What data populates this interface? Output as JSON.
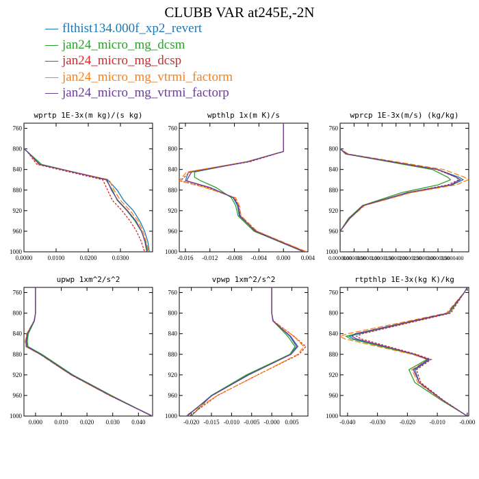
{
  "figure_title": "CLUBB VAR at245E,-2N",
  "colors": [
    "#1f77b4",
    "#2ca02c",
    "#d62728",
    "#ff7f0e",
    "#6a3d9a"
  ],
  "legend": [
    {
      "label": "flthist134.000f_xp2_revert",
      "color": "#1f77b4"
    },
    {
      "label": "jan24_micro_mg_dcsm",
      "color": "#2ca02c"
    },
    {
      "label": "jan24_micro_mg_dcsp",
      "color": "#d62728"
    },
    {
      "label": "jan24_micro_mg_vtrmi_factorm",
      "color": "#ff7f0e"
    },
    {
      "label": "jan24_micro_mg_vtrmi_factorp",
      "color": "#6a3d9a"
    }
  ],
  "chart_data": [
    {
      "type": "line",
      "title": "wprtp  1E-3x(m kg)/(s kg)",
      "xlim": [
        0,
        0.04
      ],
      "ylim": [
        1000,
        750
      ],
      "xticks": [
        0,
        0.01,
        0.02,
        0.03
      ],
      "xtick_labels": [
        "0.0000",
        "0.0100",
        "0.0200",
        "0.0300"
      ],
      "yticks": [
        760,
        800,
        840,
        880,
        920,
        960,
        1000
      ],
      "y": [
        750,
        800,
        805,
        830,
        860,
        880,
        900,
        920,
        940,
        960,
        980,
        1000
      ],
      "series": [
        {
          "name": "flthist134.000f_xp2_revert",
          "values": [
            0,
            0,
            0.001,
            0.005,
            0.026,
            0.029,
            0.031,
            0.034,
            0.036,
            0.0375,
            0.0385,
            0.039
          ]
        },
        {
          "name": "jan24_micro_mg_dcsm",
          "values": [
            0,
            0,
            0.001,
            0.0055,
            0.0255,
            0.0275,
            0.029,
            0.032,
            0.0345,
            0.0365,
            0.0378,
            0.0385
          ]
        },
        {
          "name": "jan24_micro_mg_dcsp",
          "values": [
            0,
            0,
            0.001,
            0.004,
            0.0245,
            0.026,
            0.0275,
            0.0305,
            0.033,
            0.035,
            0.0365,
            0.0375
          ]
        },
        {
          "name": "jan24_micro_mg_vtrmi_factorm",
          "values": [
            0,
            0,
            0.001,
            0.0045,
            0.0265,
            0.028,
            0.03,
            0.033,
            0.0355,
            0.037,
            0.038,
            0.0388
          ]
        },
        {
          "name": "jan24_micro_mg_vtrmi_factorp",
          "values": [
            0,
            0,
            0.001,
            0.0048,
            0.0258,
            0.0272,
            0.0292,
            0.0322,
            0.0348,
            0.0366,
            0.0376,
            0.0382
          ]
        }
      ]
    },
    {
      "type": "line",
      "title": "wpthlp  1x(m K)/s",
      "xlim": [
        -0.017,
        0.004
      ],
      "ylim": [
        1000,
        750
      ],
      "xticks": [
        -0.016,
        -0.012,
        -0.008,
        -0.004,
        0,
        0.004
      ],
      "xtick_labels": [
        "-0.016",
        "-0.012",
        "-0.008",
        "-0.004",
        "0.000",
        "0.004"
      ],
      "yticks": [
        760,
        800,
        840,
        880,
        920,
        960,
        1000
      ],
      "y": [
        750,
        790,
        805,
        825,
        845,
        855,
        862,
        875,
        895,
        910,
        930,
        960,
        1000
      ],
      "series": [
        {
          "name": "flthist134.000f_xp2_revert",
          "values": [
            0,
            0,
            0,
            -0.006,
            -0.0155,
            -0.0158,
            -0.016,
            -0.012,
            -0.0082,
            -0.0075,
            -0.0072,
            -0.0045,
            0.0035
          ]
        },
        {
          "name": "jan24_micro_mg_dcsm",
          "values": [
            0,
            0,
            0,
            -0.006,
            -0.0145,
            -0.0145,
            -0.0135,
            -0.011,
            -0.0085,
            -0.0078,
            -0.0074,
            -0.0048,
            0.0033
          ]
        },
        {
          "name": "jan24_micro_mg_dcsp",
          "values": [
            0,
            0,
            0,
            -0.0055,
            -0.0152,
            -0.0162,
            -0.0168,
            -0.0125,
            -0.008,
            -0.0073,
            -0.007,
            -0.0044,
            0.0036
          ]
        },
        {
          "name": "jan24_micro_mg_vtrmi_factorm",
          "values": [
            0,
            0,
            0,
            -0.006,
            -0.0158,
            -0.0165,
            -0.017,
            -0.0128,
            -0.0078,
            -0.0072,
            -0.0069,
            -0.0043,
            0.0038
          ]
        },
        {
          "name": "jan24_micro_mg_vtrmi_factorp",
          "values": [
            0,
            0,
            0,
            -0.0058,
            -0.015,
            -0.0155,
            -0.0158,
            -0.012,
            -0.0081,
            -0.0074,
            -0.0071,
            -0.0046,
            0.0034
          ]
        }
      ]
    },
    {
      "type": "line",
      "title": "wprcp  1E-3x(m/s) (kg/kg)",
      "xlim": [
        0,
        4.6e-05
      ],
      "ylim": [
        1000,
        750
      ],
      "xticks": [
        0,
        5e-06,
        1e-05,
        1.5e-05,
        2e-05,
        2.5e-05,
        3e-05,
        3.5e-05,
        4e-05
      ],
      "xtick_labels": [
        "0.0000000",
        "0.0000050",
        "0.0000100",
        "0.0000150",
        "0.0000200",
        "0.0000250",
        "0.0000300",
        "0.0000350",
        "0.0000400"
      ],
      "yticks": [
        760,
        800,
        840,
        880,
        920,
        960,
        1000
      ],
      "y": [
        750,
        800,
        810,
        840,
        855,
        860,
        870,
        885,
        910,
        935,
        960,
        1000
      ],
      "series": [
        {
          "name": "flthist134.000f_xp2_revert",
          "values": [
            0,
            0,
            2.5e-06,
            3.5e-05,
            4.25e-05,
            4.4e-05,
            4e-05,
            2.5e-05,
            8.5e-06,
            3.5e-06,
            0,
            0
          ]
        },
        {
          "name": "jan24_micro_mg_dcsm",
          "values": [
            0,
            0,
            2e-06,
            3.3e-05,
            3.85e-05,
            3.95e-05,
            3.5e-05,
            2.2e-05,
            8e-06,
            3e-06,
            0,
            0
          ]
        },
        {
          "name": "jan24_micro_mg_dcsp",
          "values": [
            0,
            0,
            2.2e-06,
            3.45e-05,
            4.15e-05,
            4.25e-05,
            3.85e-05,
            2.4e-05,
            8.2e-06,
            3.3e-06,
            0,
            0
          ]
        },
        {
          "name": "jan24_micro_mg_vtrmi_factorm",
          "values": [
            0,
            0,
            3e-06,
            3.7e-05,
            4.45e-05,
            4.58e-05,
            4.15e-05,
            2.55e-05,
            8.8e-06,
            3.6e-06,
            0,
            0
          ]
        },
        {
          "name": "jan24_micro_mg_vtrmi_factorp",
          "values": [
            0,
            0,
            2.5e-06,
            3.5e-05,
            4.15e-05,
            4.3e-05,
            3.95e-05,
            2.4e-05,
            8.3e-06,
            3.4e-06,
            0,
            0
          ]
        }
      ]
    },
    {
      "type": "line",
      "title": "upwp  1xm^2/s^2",
      "xlim": [
        -0.0045,
        0.0455
      ],
      "ylim": [
        1000,
        750
      ],
      "xticks": [
        0,
        0.01,
        0.02,
        0.03,
        0.04
      ],
      "xtick_labels": [
        "0.000",
        "0.010",
        "0.020",
        "0.030",
        "0.040"
      ],
      "yticks": [
        760,
        800,
        840,
        880,
        920,
        960,
        1000
      ],
      "y": [
        750,
        800,
        815,
        840,
        855,
        865,
        880,
        920,
        960,
        1000
      ],
      "series": [
        {
          "name": "flthist134.000f_xp2_revert",
          "values": [
            0,
            0,
            -0.0005,
            -0.003,
            -0.0035,
            -0.0033,
            0.002,
            0.014,
            0.029,
            0.0455
          ]
        },
        {
          "name": "jan24_micro_mg_dcsm",
          "values": [
            0,
            0,
            -0.0004,
            -0.0028,
            -0.0032,
            -0.0029,
            0.0025,
            0.0145,
            0.0295,
            0.0452
          ]
        },
        {
          "name": "jan24_micro_mg_dcsp",
          "values": [
            0,
            0,
            -0.0006,
            -0.0033,
            -0.0038,
            -0.0036,
            0.0018,
            0.0138,
            0.0288,
            0.0453
          ]
        },
        {
          "name": "jan24_micro_mg_vtrmi_factorm",
          "values": [
            0,
            0,
            -0.0006,
            -0.0034,
            -0.004,
            -0.0038,
            0.0017,
            0.0137,
            0.0287,
            0.0454
          ]
        },
        {
          "name": "jan24_micro_mg_vtrmi_factorp",
          "values": [
            0,
            0,
            -0.0005,
            -0.0032,
            -0.0037,
            -0.0034,
            0.0019,
            0.014,
            0.029,
            0.0452
          ]
        }
      ]
    },
    {
      "type": "line",
      "title": "vpwp  1xm^2/s^2",
      "xlim": [
        -0.023,
        0.009
      ],
      "ylim": [
        1000,
        750
      ],
      "xticks": [
        -0.02,
        -0.015,
        -0.01,
        -0.005,
        0,
        0.005
      ],
      "xtick_labels": [
        "-0.020",
        "-0.015",
        "-0.010",
        "-0.005",
        "-0.000",
        "0.005"
      ],
      "yticks": [
        760,
        800,
        840,
        880,
        920,
        960,
        1000
      ],
      "y": [
        750,
        800,
        815,
        845,
        865,
        880,
        920,
        960,
        1000
      ],
      "series": [
        {
          "name": "flthist134.000f_xp2_revert",
          "values": [
            0,
            0,
            0.0003,
            0.0045,
            0.0062,
            0.0045,
            -0.006,
            -0.015,
            -0.021
          ]
        },
        {
          "name": "jan24_micro_mg_dcsm",
          "values": [
            0,
            0,
            0.0003,
            0.004,
            0.0058,
            0.0045,
            -0.0063,
            -0.015,
            -0.02
          ]
        },
        {
          "name": "jan24_micro_mg_dcsp",
          "values": [
            0,
            0,
            0.0004,
            0.0055,
            0.0085,
            0.0068,
            -0.0035,
            -0.0135,
            -0.0205
          ]
        },
        {
          "name": "jan24_micro_mg_vtrmi_factorm",
          "values": [
            0,
            0,
            0.0004,
            0.0055,
            0.008,
            0.0065,
            -0.0035,
            -0.0135,
            -0.0215
          ]
        },
        {
          "name": "jan24_micro_mg_vtrmi_factorp",
          "values": [
            0,
            0,
            0.0003,
            0.0047,
            0.0065,
            0.0048,
            -0.0057,
            -0.0148,
            -0.0212
          ]
        }
      ]
    },
    {
      "type": "line",
      "title": "rtpthlp  1E-3x(kg K)/kg",
      "xlim": [
        -0.0425,
        0.0005
      ],
      "ylim": [
        1000,
        750
      ],
      "xticks": [
        -0.04,
        -0.03,
        -0.02,
        -0.01,
        0
      ],
      "xtick_labels": [
        "-0.040",
        "-0.030",
        "-0.020",
        "-0.010",
        "-0.000"
      ],
      "yticks": [
        760,
        800,
        840,
        880,
        920,
        960,
        1000
      ],
      "y": [
        750,
        760,
        800,
        840,
        845,
        850,
        880,
        890,
        910,
        935,
        970,
        1000
      ],
      "series": [
        {
          "name": "flthist134.000f_xp2_revert",
          "values": [
            0,
            -0.001,
            -0.006,
            -0.036,
            -0.0395,
            -0.038,
            -0.018,
            -0.0125,
            -0.0175,
            -0.016,
            -0.008,
            0
          ]
        },
        {
          "name": "jan24_micro_mg_dcsm",
          "values": [
            0,
            -0.001,
            -0.006,
            -0.037,
            -0.0405,
            -0.039,
            -0.018,
            -0.0135,
            -0.0195,
            -0.0175,
            -0.0085,
            0
          ]
        },
        {
          "name": "jan24_micro_mg_dcsp",
          "values": [
            0,
            -0.001,
            -0.0055,
            -0.035,
            -0.037,
            -0.0355,
            -0.017,
            -0.012,
            -0.017,
            -0.0155,
            -0.0078,
            0
          ]
        },
        {
          "name": "jan24_micro_mg_vtrmi_factorm",
          "values": [
            0,
            -0.001,
            -0.007,
            -0.04,
            -0.0425,
            -0.041,
            -0.0185,
            -0.013,
            -0.0185,
            -0.0165,
            -0.0082,
            0
          ]
        },
        {
          "name": "jan24_micro_mg_vtrmi_factorp",
          "values": [
            0,
            -0.001,
            -0.0065,
            -0.0375,
            -0.0385,
            -0.037,
            -0.0175,
            -0.013,
            -0.018,
            -0.016,
            -0.008,
            0
          ]
        }
      ]
    }
  ]
}
